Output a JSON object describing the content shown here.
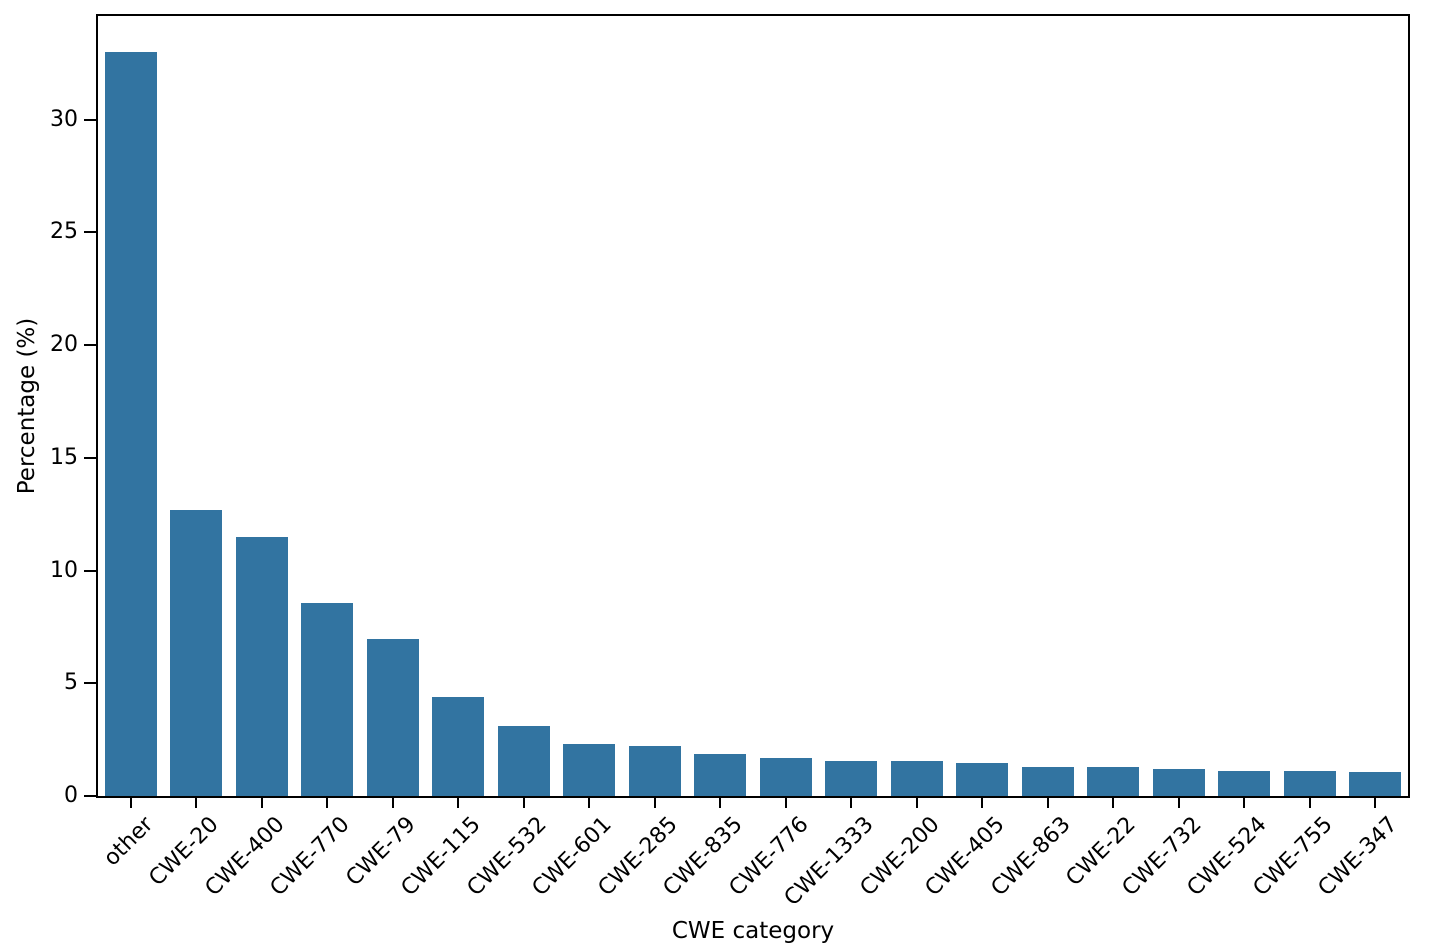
{
  "figure": {
    "background_color": "#ffffff",
    "spine_color": "#000000",
    "text_color": "#000000"
  },
  "chart_data": {
    "type": "bar",
    "title": "",
    "xlabel": "CWE category",
    "ylabel": "Percentage (%)",
    "categories": [
      "other",
      "CWE-20",
      "CWE-400",
      "CWE-770",
      "CWE-79",
      "CWE-115",
      "CWE-532",
      "CWE-601",
      "CWE-285",
      "CWE-835",
      "CWE-776",
      "CWE-1333",
      "CWE-200",
      "CWE-405",
      "CWE-863",
      "CWE-22",
      "CWE-732",
      "CWE-524",
      "CWE-755",
      "CWE-347"
    ],
    "values": [
      33.0,
      12.7,
      11.5,
      8.55,
      6.95,
      4.4,
      3.1,
      2.3,
      2.2,
      1.85,
      1.7,
      1.55,
      1.55,
      1.45,
      1.3,
      1.3,
      1.2,
      1.1,
      1.1,
      1.05
    ],
    "bar_color": "#3274a1",
    "ylim": [
      0,
      34.6
    ],
    "yticks": [
      0,
      5,
      10,
      15,
      20,
      25,
      30
    ],
    "xtick_rotation_deg": 45,
    "grid": false,
    "legend_position": "none"
  }
}
